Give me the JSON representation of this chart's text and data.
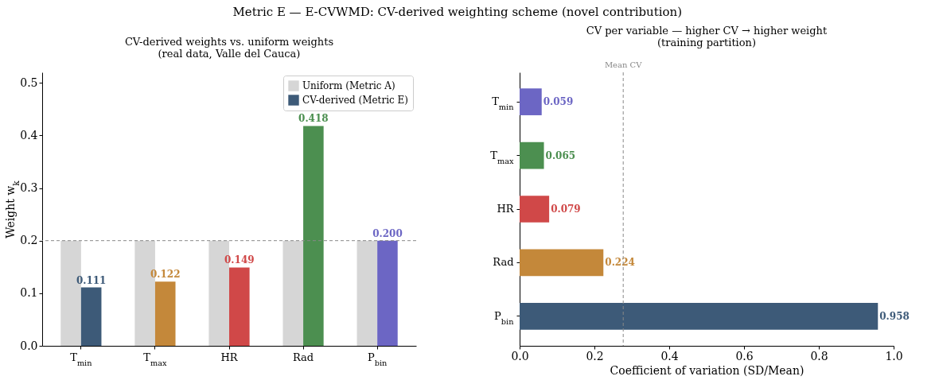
{
  "chart_data": [
    {
      "type": "bar",
      "title": "CV-derived weights vs. uniform weights\n(real data, Valle del Cauca)",
      "annotations": [
        "Metric E — E-CVWMD: CV-derived weighting scheme (novel contribution)"
      ],
      "ylabel": "Weight w$_{k}$",
      "categories": [
        "T$_{min}$",
        "T$_{max}$",
        "HR",
        "Rad",
        "P$_{bin}$"
      ],
      "series": [
        {
          "name": "Uniform (Metric A)",
          "color": "#d6d6d6",
          "values": [
            0.2,
            0.2,
            0.2,
            0.2,
            0.2
          ]
        },
        {
          "name": "CV-derived (Metric E)",
          "color": "#3d5a78",
          "colors": [
            "#3d5a78",
            "#c4883a",
            "#d04848",
            "#4c8f50",
            "#6c66c4"
          ],
          "values": [
            0.111,
            0.122,
            0.149,
            0.418,
            0.2
          ],
          "value_labels": [
            "0.111",
            "0.122",
            "0.149",
            "0.418",
            "0.200"
          ]
        }
      ],
      "ylim": [
        0,
        0.52
      ],
      "yticks": [
        {
          "value": 0,
          "label": "0.0"
        },
        0.1,
        0.2,
        0.3,
        0.4,
        0.5
      ],
      "grid": false,
      "legend": "top right",
      "ref_lines": [
        {
          "axis": "y",
          "value": 0.2,
          "color": "#888888",
          "line_style": "dashed"
        }
      ]
    },
    {
      "type": "bar",
      "orientation": "horizontal",
      "title": "CV per variable — higher CV → higher weight\n(training partition)",
      "xlabel": "Coefficient of variation (SD/Mean)",
      "categories": [
        "T$_{min}$",
        "T$_{max}$",
        "HR",
        "Rad",
        "P$_{bin}$"
      ],
      "values": [
        0.059,
        0.065,
        0.079,
        0.224,
        0.958
      ],
      "colors": [
        "#6c66c4",
        "#4c8f50",
        "#d04848",
        "#c4883a",
        "#3d5a78"
      ],
      "data_labels": true,
      "xlim": [
        0,
        1
      ],
      "xticks": [
        {
          "value": 0,
          "label": "0.0"
        },
        0.2,
        0.4,
        0.6,
        0.8,
        {
          "value": 1,
          "label": "1.0"
        }
      ],
      "grid": false,
      "ref_lines": [
        {
          "axis": "x",
          "value": 0.277,
          "label": "Mean CV",
          "color": "#888888",
          "line_style": "dashed"
        }
      ]
    }
  ]
}
